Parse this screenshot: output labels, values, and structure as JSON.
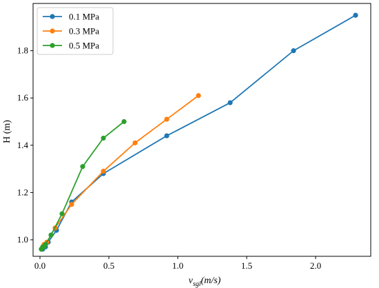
{
  "chart_data": {
    "type": "line",
    "xlabel": "v_sgl(m/s)",
    "xlabel_parts": {
      "main": "v",
      "sub": "sgl",
      "rest": "(m/s)"
    },
    "ylabel": "H (m)",
    "xlim": [
      -0.05,
      2.4
    ],
    "ylim": [
      0.93,
      2.0
    ],
    "xticks": [
      0.0,
      0.5,
      1.0,
      1.5,
      2.0
    ],
    "xtick_labels": [
      "0.0",
      "0.5",
      "1.0",
      "1.5",
      "2.0"
    ],
    "yticks": [
      1.0,
      1.2,
      1.4,
      1.6,
      1.8
    ],
    "ytick_labels": [
      "1.0",
      "1.2",
      "1.4",
      "1.6",
      "1.8"
    ],
    "grid": false,
    "legend_position": "top-left",
    "series": [
      {
        "name": "0.1 MPa",
        "color": "#1f77b4",
        "x": [
          0.01,
          0.02,
          0.04,
          0.06,
          0.12,
          0.23,
          0.46,
          0.92,
          1.38,
          1.84,
          2.29
        ],
        "y": [
          0.96,
          0.96,
          0.97,
          0.99,
          1.04,
          1.16,
          1.28,
          1.44,
          1.58,
          1.8,
          1.95
        ]
      },
      {
        "name": "0.3 MPa",
        "color": "#ff7f0e",
        "x": [
          0.01,
          0.02,
          0.03,
          0.05,
          0.11,
          0.23,
          0.46,
          0.69,
          0.92,
          1.15
        ],
        "y": [
          0.96,
          0.97,
          0.98,
          0.99,
          1.05,
          1.15,
          1.29,
          1.41,
          1.51,
          1.61
        ]
      },
      {
        "name": "0.5 MPa",
        "color": "#2ca02c",
        "x": [
          0.01,
          0.02,
          0.03,
          0.04,
          0.08,
          0.16,
          0.31,
          0.46,
          0.61
        ],
        "y": [
          0.96,
          0.97,
          0.97,
          0.98,
          1.02,
          1.11,
          1.31,
          1.43,
          1.5
        ]
      }
    ]
  }
}
